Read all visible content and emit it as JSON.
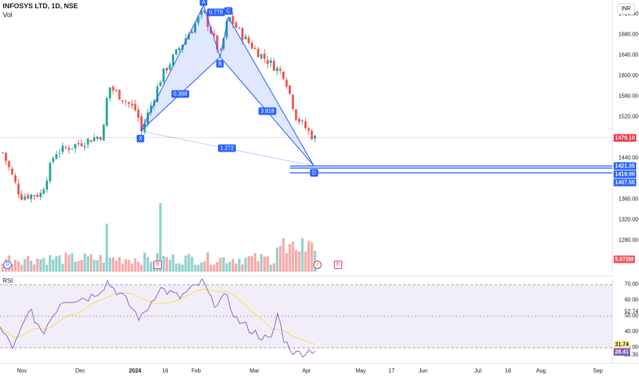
{
  "header": {
    "symbol": "INFOSYS LTD, 1D, NSE",
    "volume_label": "Vol",
    "currency_button": "INR"
  },
  "price_axis": {
    "ticks": [
      "1720.00",
      "1680.00",
      "1640.00",
      "1600.00",
      "1560.00",
      "1520.00",
      "1440.00",
      "1360.00",
      "1320.00",
      "1280.00"
    ],
    "tick_values": [
      1720,
      1680,
      1640,
      1600,
      1560,
      1520,
      1440,
      1360,
      1320,
      1280
    ],
    "last_price": "1479.10",
    "levels": [
      "1421.35",
      "1419.00",
      "1407.50"
    ],
    "volume_value": "5.072M"
  },
  "pattern": {
    "points": [
      "X",
      "A",
      "B",
      "C",
      "D"
    ],
    "ratios": [
      "0.779",
      "0.398",
      "3.818",
      "1.272"
    ]
  },
  "events": {
    "dividend": "D",
    "earnings": "E",
    "earnings_future": "E",
    "split_icon": "bolt-icon"
  },
  "rsi": {
    "label": "RSI",
    "ticks": [
      "70.00",
      "60.00",
      "52.74",
      "50.00",
      "40.00",
      "30.00",
      "25.30"
    ],
    "tick_values": [
      70,
      60,
      52.74,
      50,
      40,
      30,
      25.3
    ],
    "rsi_value": "28.41",
    "ma_value": "31.74"
  },
  "time_axis": [
    "Nov",
    "Dec",
    "2024",
    "16",
    "Feb",
    "Mar",
    "Apr",
    "May",
    "17",
    "Jun",
    "Jul",
    "16",
    "Aug",
    "Sep"
  ],
  "time_axis_bold": [
    "2024"
  ],
  "colors": {
    "up": "#26a69a",
    "down": "#ef5350",
    "pattern": "#2962ff",
    "pattern_fill": "#2962ff",
    "rsi_line": "#7e57c2",
    "rsi_ma": "#fdd835",
    "rsi_bg": "#7e57c2",
    "last_price": "#f23645"
  }
}
